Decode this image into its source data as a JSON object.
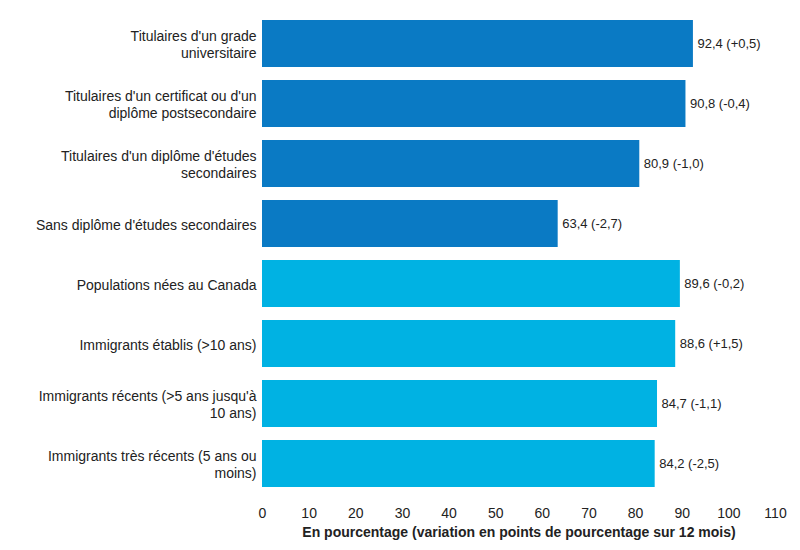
{
  "chart_data": {
    "type": "bar",
    "orientation": "horizontal",
    "categories": [
      "Titulaires d'un grade universitaire",
      "Titulaires d'un certificat ou d'un diplôme postsecondaire",
      "Titulaires d'un diplôme d'études secondaires",
      "Sans diplôme d'études secondaires",
      "Populations nées au Canada",
      "Immigrants établis (>10 ans)",
      "Immigrants récents (>5 ans jusqu'à 10 ans)",
      "Immigrants très récents (5 ans ou moins)"
    ],
    "values": [
      92.4,
      90.8,
      80.9,
      63.4,
      89.6,
      88.6,
      84.7,
      84.2
    ],
    "value_labels": [
      "92,4 (+0,5)",
      "90,8 (-0,4)",
      "80,9 (-1,0)",
      "63,4 (-2,7)",
      "89,6 (-0,2)",
      "88,6 (+1,5)",
      "84,7 (-1,1)",
      "84,2 (-2,5)"
    ],
    "colors": [
      "#0a7ac4",
      "#0a7ac4",
      "#0a7ac4",
      "#0a7ac4",
      "#00b2e3",
      "#00b2e3",
      "#00b2e3",
      "#00b2e3"
    ],
    "x_label": "En pourcentage (variation en points de pourcentage sur 12 mois)",
    "xlim": [
      0,
      110
    ],
    "xticks": [
      0,
      10,
      20,
      30,
      40,
      50,
      60,
      70,
      80,
      90,
      100,
      110
    ],
    "data_labels": true,
    "grid": false
  }
}
